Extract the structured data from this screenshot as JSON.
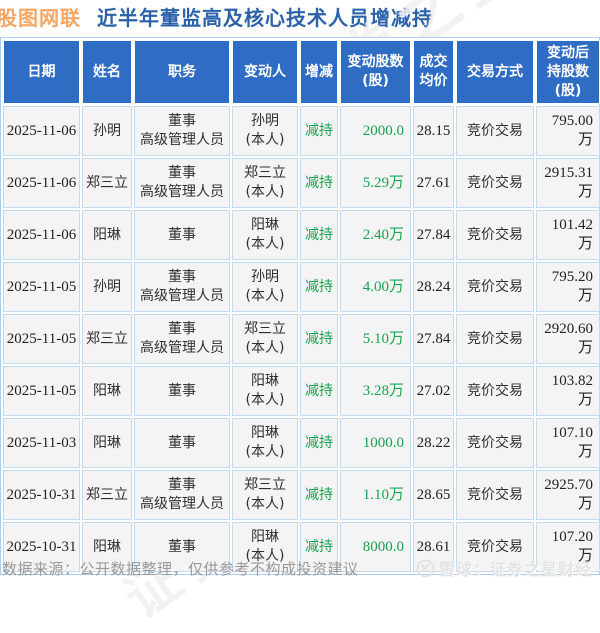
{
  "title": {
    "brand": "股图网联",
    "heading": "近半年董监高及核心技术人员增减持"
  },
  "chart_data": {
    "type": "table",
    "title": "股图网联 近半年董监高及核心技术人员增减持",
    "columns": [
      {
        "id": "date",
        "label": "日期"
      },
      {
        "id": "name",
        "label": "姓名"
      },
      {
        "id": "position",
        "label": "职务"
      },
      {
        "id": "changer",
        "label": "变动人"
      },
      {
        "id": "direction",
        "label": "增减"
      },
      {
        "id": "shares",
        "label": "变动股数\n(股)"
      },
      {
        "id": "price",
        "label": "成交\n均价"
      },
      {
        "id": "method",
        "label": "交易方式"
      },
      {
        "id": "after",
        "label": "变动后\n持股数\n(股)"
      }
    ],
    "rows": [
      {
        "date": "2025-11-06",
        "name": "孙明",
        "position": "董事\n高级管理人员",
        "changer": "孙明\n(本人)",
        "direction": "减持",
        "shares": "2000.0",
        "price": "28.15",
        "method": "竞价交易",
        "after": "795.00万"
      },
      {
        "date": "2025-11-06",
        "name": "郑三立",
        "position": "董事\n高级管理人员",
        "changer": "郑三立\n(本人)",
        "direction": "减持",
        "shares": "5.29万",
        "price": "27.61",
        "method": "竞价交易",
        "after": "2915.31万"
      },
      {
        "date": "2025-11-06",
        "name": "阳琳",
        "position": "董事",
        "changer": "阳琳\n(本人)",
        "direction": "减持",
        "shares": "2.40万",
        "price": "27.84",
        "method": "竞价交易",
        "after": "101.42万"
      },
      {
        "date": "2025-11-05",
        "name": "孙明",
        "position": "董事\n高级管理人员",
        "changer": "孙明\n(本人)",
        "direction": "减持",
        "shares": "4.00万",
        "price": "28.24",
        "method": "竞价交易",
        "after": "795.20万"
      },
      {
        "date": "2025-11-05",
        "name": "郑三立",
        "position": "董事\n高级管理人员",
        "changer": "郑三立\n(本人)",
        "direction": "减持",
        "shares": "5.10万",
        "price": "27.84",
        "method": "竞价交易",
        "after": "2920.60万"
      },
      {
        "date": "2025-11-05",
        "name": "阳琳",
        "position": "董事",
        "changer": "阳琳\n(本人)",
        "direction": "减持",
        "shares": "3.28万",
        "price": "27.02",
        "method": "竞价交易",
        "after": "103.82万"
      },
      {
        "date": "2025-11-03",
        "name": "阳琳",
        "position": "董事",
        "changer": "阳琳\n(本人)",
        "direction": "减持",
        "shares": "1000.0",
        "price": "28.22",
        "method": "竞价交易",
        "after": "107.10万"
      },
      {
        "date": "2025-10-31",
        "name": "郑三立",
        "position": "董事\n高级管理人员",
        "changer": "郑三立\n(本人)",
        "direction": "减持",
        "shares": "1.10万",
        "price": "28.65",
        "method": "竞价交易",
        "after": "2925.70万"
      },
      {
        "date": "2025-10-31",
        "name": "阳琳",
        "position": "董事",
        "changer": "阳琳\n(本人)",
        "direction": "减持",
        "shares": "8000.0",
        "price": "28.61",
        "method": "竞价交易",
        "after": "107.20万"
      }
    ]
  },
  "footer": {
    "source": "数据来源：公开数据整理，仅供参考不构成投资建议",
    "credit": "雪球：证券之星财经"
  },
  "watermark": {
    "text": "证券之星"
  },
  "colors": {
    "brand_orange": "#f8a663",
    "title_blue": "#2b62a9",
    "header_bg": "#2f6cc4",
    "row_bg": "#f4f4f4",
    "green": "#1aa251",
    "grid_blue": "#c3dbf2",
    "outer_border": "#aecdea",
    "text_dark": "#2f2f2f",
    "footer_gray": "#999999"
  }
}
